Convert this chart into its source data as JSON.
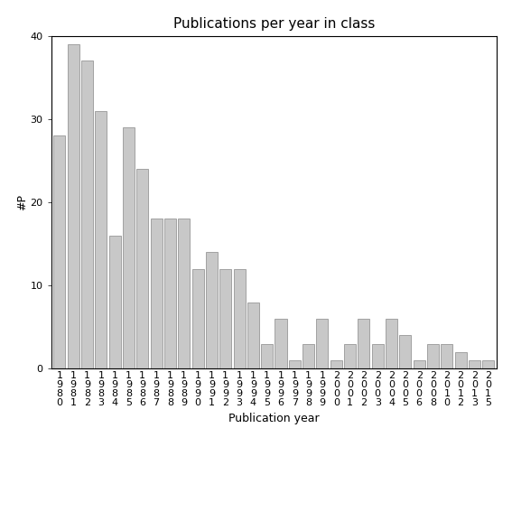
{
  "categories": [
    "1980",
    "1981",
    "1982",
    "1983",
    "1984",
    "1985",
    "1986",
    "1987",
    "1988",
    "1989",
    "1990",
    "1991",
    "1992",
    "1993",
    "1994",
    "1995",
    "1996",
    "1997",
    "1998",
    "1999",
    "2000",
    "2001",
    "2002",
    "2003",
    "2004",
    "2005",
    "2006",
    "2008",
    "2010",
    "2012",
    "2013",
    "2015"
  ],
  "values": [
    28,
    39,
    37,
    31,
    16,
    29,
    24,
    18,
    18,
    18,
    12,
    14,
    12,
    12,
    8,
    3,
    6,
    1,
    3,
    6,
    1,
    3,
    6,
    3,
    6,
    4,
    1,
    3,
    3,
    2,
    1,
    1
  ],
  "bar_color": "#c8c8c8",
  "bar_edge_color": "#888888",
  "title": "Publications per year in class",
  "xlabel": "Publication year",
  "ylabel": "#P",
  "ylim": [
    0,
    40
  ],
  "yticks": [
    0,
    10,
    20,
    30,
    40
  ],
  "background_color": "#ffffff",
  "title_fontsize": 11,
  "label_fontsize": 9,
  "tick_fontsize": 8
}
